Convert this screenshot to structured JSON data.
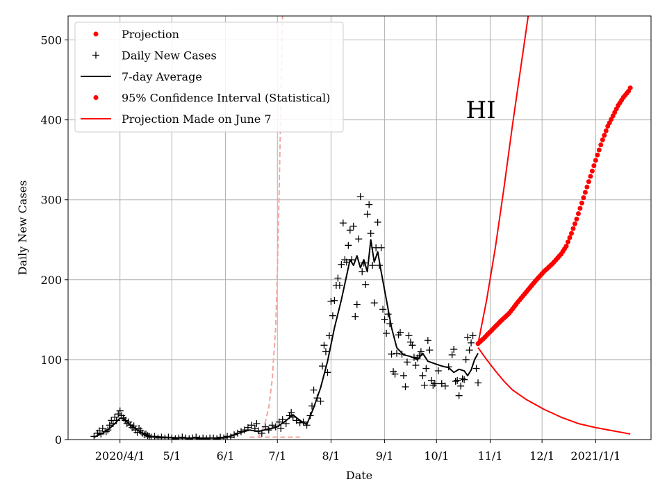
{
  "chart_data": {
    "type": "line",
    "state_label": "HI",
    "xlabel": "Date",
    "ylabel": "Daily New Cases",
    "ylim": [
      0,
      530
    ],
    "xlim_days": [
      -30,
      307
    ],
    "x_origin_date": "2020-04-01",
    "x_ticks": [
      {
        "day": 0,
        "label": "2020/4/1"
      },
      {
        "day": 30,
        "label": "5/1"
      },
      {
        "day": 61,
        "label": "6/1"
      },
      {
        "day": 91,
        "label": "7/1"
      },
      {
        "day": 122,
        "label": "8/1"
      },
      {
        "day": 153,
        "label": "9/1"
      },
      {
        "day": 183,
        "label": "10/1"
      },
      {
        "day": 214,
        "label": "11/1"
      },
      {
        "day": 244,
        "label": "12/1"
      },
      {
        "day": 275,
        "label": "2021/1/1"
      }
    ],
    "y_ticks": [
      0,
      100,
      200,
      300,
      400,
      500
    ],
    "legend": {
      "placement": "top-left",
      "entries": [
        {
          "label": "Projection",
          "marker": "dot",
          "color": "#ff0000"
        },
        {
          "label": "Daily New Cases",
          "marker": "plus",
          "color": "#000000"
        },
        {
          "label": "7-day Average",
          "marker": "line",
          "color": "#000000"
        },
        {
          "label": "95% Confidence Interval (Statistical)",
          "marker": "dot",
          "color": "#ff0000"
        },
        {
          "label": "Projection Made on June 7",
          "marker": "line",
          "color": "#ff0000"
        }
      ]
    },
    "series": [
      {
        "name": "Daily New Cases",
        "style": "plus",
        "color": "#000000",
        "points": [
          [
            -15,
            4
          ],
          [
            -13,
            8
          ],
          [
            -12,
            11
          ],
          [
            -11,
            7
          ],
          [
            -10,
            14
          ],
          [
            -8,
            10
          ],
          [
            -7,
            12
          ],
          [
            -6,
            18
          ],
          [
            -5,
            24
          ],
          [
            -4,
            20
          ],
          [
            -3,
            28
          ],
          [
            -2,
            24
          ],
          [
            -1,
            32
          ],
          [
            0,
            36
          ],
          [
            1,
            30
          ],
          [
            2,
            27
          ],
          [
            3,
            24
          ],
          [
            4,
            20
          ],
          [
            5,
            22
          ],
          [
            6,
            18
          ],
          [
            7,
            15
          ],
          [
            8,
            17
          ],
          [
            9,
            12
          ],
          [
            10,
            9
          ],
          [
            11,
            14
          ],
          [
            12,
            11
          ],
          [
            13,
            8
          ],
          [
            14,
            6
          ],
          [
            15,
            7
          ],
          [
            16,
            5
          ],
          [
            17,
            4
          ],
          [
            18,
            3
          ],
          [
            20,
            4
          ],
          [
            22,
            2
          ],
          [
            24,
            3
          ],
          [
            26,
            2
          ],
          [
            28,
            3
          ],
          [
            30,
            2
          ],
          [
            32,
            1
          ],
          [
            34,
            2
          ],
          [
            36,
            3
          ],
          [
            38,
            2
          ],
          [
            40,
            1
          ],
          [
            42,
            2
          ],
          [
            44,
            3
          ],
          [
            46,
            1
          ],
          [
            48,
            2
          ],
          [
            50,
            1
          ],
          [
            52,
            2
          ],
          [
            54,
            2
          ],
          [
            56,
            1
          ],
          [
            58,
            3
          ],
          [
            60,
            2
          ],
          [
            62,
            4
          ],
          [
            64,
            3
          ],
          [
            66,
            6
          ],
          [
            68,
            8
          ],
          [
            70,
            10
          ],
          [
            72,
            12
          ],
          [
            74,
            15
          ],
          [
            76,
            18
          ],
          [
            78,
            14
          ],
          [
            79,
            20
          ],
          [
            80,
            11
          ],
          [
            82,
            8
          ],
          [
            84,
            16
          ],
          [
            86,
            12
          ],
          [
            88,
            18
          ],
          [
            90,
            16
          ],
          [
            92,
            22
          ],
          [
            93,
            14
          ],
          [
            94,
            25
          ],
          [
            96,
            20
          ],
          [
            98,
            30
          ],
          [
            99,
            34
          ],
          [
            100,
            28
          ],
          [
            102,
            24
          ],
          [
            104,
            21
          ],
          [
            106,
            22
          ],
          [
            108,
            18
          ],
          [
            110,
            30
          ],
          [
            111,
            42
          ],
          [
            112,
            62
          ],
          [
            114,
            52
          ],
          [
            116,
            48
          ],
          [
            117,
            92
          ],
          [
            118,
            118
          ],
          [
            119,
            110
          ],
          [
            120,
            84
          ],
          [
            121,
            130
          ],
          [
            122,
            173
          ],
          [
            123,
            155
          ],
          [
            124,
            174
          ],
          [
            125,
            193
          ],
          [
            126,
            202
          ],
          [
            127,
            193
          ],
          [
            128,
            219
          ],
          [
            129,
            271
          ],
          [
            130,
            225
          ],
          [
            131,
            222
          ],
          [
            132,
            243
          ],
          [
            133,
            262
          ],
          [
            134,
            225
          ],
          [
            135,
            267
          ],
          [
            136,
            154
          ],
          [
            137,
            169
          ],
          [
            138,
            251
          ],
          [
            139,
            304
          ],
          [
            140,
            210
          ],
          [
            141,
            221
          ],
          [
            142,
            194
          ],
          [
            143,
            282
          ],
          [
            144,
            294
          ],
          [
            145,
            258
          ],
          [
            146,
            218
          ],
          [
            147,
            171
          ],
          [
            148,
            240
          ],
          [
            149,
            272
          ],
          [
            150,
            218
          ],
          [
            151,
            240
          ],
          [
            152,
            163
          ],
          [
            153,
            150
          ],
          [
            154,
            133
          ],
          [
            155,
            157
          ],
          [
            156,
            145
          ],
          [
            157,
            107
          ],
          [
            158,
            85
          ],
          [
            159,
            82
          ],
          [
            160,
            108
          ],
          [
            161,
            131
          ],
          [
            162,
            134
          ],
          [
            163,
            107
          ],
          [
            164,
            80
          ],
          [
            165,
            66
          ],
          [
            166,
            97
          ],
          [
            167,
            130
          ],
          [
            168,
            122
          ],
          [
            169,
            118
          ],
          [
            170,
            103
          ],
          [
            171,
            93
          ],
          [
            172,
            102
          ],
          [
            173,
            105
          ],
          [
            174,
            110
          ],
          [
            175,
            80
          ],
          [
            176,
            68
          ],
          [
            177,
            89
          ],
          [
            178,
            124
          ],
          [
            179,
            112
          ],
          [
            180,
            74
          ],
          [
            181,
            68
          ],
          [
            182,
            70
          ],
          [
            184,
            86
          ],
          [
            186,
            70
          ],
          [
            188,
            67
          ],
          [
            190,
            91
          ],
          [
            192,
            106
          ],
          [
            193,
            113
          ],
          [
            194,
            73
          ],
          [
            195,
            74
          ],
          [
            196,
            55
          ],
          [
            197,
            67
          ],
          [
            198,
            76
          ],
          [
            199,
            75
          ],
          [
            200,
            100
          ],
          [
            201,
            128
          ],
          [
            202,
            112
          ],
          [
            203,
            121
          ],
          [
            204,
            130
          ],
          [
            206,
            89
          ],
          [
            207,
            71
          ]
        ]
      },
      {
        "name": "7-day Average",
        "style": "line",
        "color": "#000000",
        "points": [
          [
            -15,
            3
          ],
          [
            -10,
            8
          ],
          [
            -6,
            14
          ],
          [
            -3,
            20
          ],
          [
            0,
            27
          ],
          [
            3,
            25
          ],
          [
            6,
            18
          ],
          [
            10,
            12
          ],
          [
            14,
            7
          ],
          [
            18,
            4
          ],
          [
            25,
            3
          ],
          [
            35,
            2
          ],
          [
            45,
            2
          ],
          [
            55,
            2
          ],
          [
            60,
            2
          ],
          [
            65,
            5
          ],
          [
            70,
            9
          ],
          [
            75,
            12
          ],
          [
            80,
            10
          ],
          [
            85,
            13
          ],
          [
            90,
            15
          ],
          [
            95,
            22
          ],
          [
            100,
            31
          ],
          [
            104,
            24
          ],
          [
            108,
            19
          ],
          [
            112,
            40
          ],
          [
            116,
            65
          ],
          [
            120,
            98
          ],
          [
            124,
            140
          ],
          [
            128,
            175
          ],
          [
            131,
            205
          ],
          [
            133,
            225
          ],
          [
            135,
            218
          ],
          [
            137,
            230
          ],
          [
            139,
            215
          ],
          [
            141,
            225
          ],
          [
            143,
            210
          ],
          [
            145,
            250
          ],
          [
            147,
            222
          ],
          [
            149,
            235
          ],
          [
            151,
            210
          ],
          [
            154,
            175
          ],
          [
            157,
            140
          ],
          [
            160,
            115
          ],
          [
            164,
            106
          ],
          [
            168,
            104
          ],
          [
            172,
            100
          ],
          [
            175,
            108
          ],
          [
            178,
            98
          ],
          [
            182,
            95
          ],
          [
            186,
            92
          ],
          [
            190,
            90
          ],
          [
            193,
            84
          ],
          [
            196,
            88
          ],
          [
            199,
            86
          ],
          [
            201,
            80
          ],
          [
            203,
            87
          ],
          [
            205,
            100
          ],
          [
            207,
            108
          ]
        ]
      },
      {
        "name": "Projection",
        "style": "dots",
        "color": "#ff0000",
        "points": [
          [
            207,
            120
          ],
          [
            210,
            126
          ],
          [
            215,
            137
          ],
          [
            220,
            148
          ],
          [
            225,
            158
          ],
          [
            230,
            172
          ],
          [
            235,
            185
          ],
          [
            240,
            198
          ],
          [
            245,
            210
          ],
          [
            250,
            220
          ],
          [
            255,
            232
          ],
          [
            258,
            242
          ],
          [
            261,
            258
          ],
          [
            264,
            276
          ],
          [
            267,
            296
          ],
          [
            270,
            316
          ],
          [
            273,
            336
          ],
          [
            276,
            356
          ],
          [
            279,
            375
          ],
          [
            282,
            392
          ],
          [
            285,
            405
          ],
          [
            288,
            418
          ],
          [
            291,
            428
          ],
          [
            294,
            436
          ],
          [
            295,
            440
          ]
        ]
      },
      {
        "name": "95% Confidence Interval (Statistical)",
        "style": "line",
        "color": "#ff0000",
        "points": [
          [
            207,
            120
          ],
          [
            212,
            175
          ],
          [
            217,
            240
          ],
          [
            222,
            315
          ],
          [
            227,
            395
          ],
          [
            232,
            470
          ],
          [
            236,
            530
          ]
        ]
      },
      {
        "name": "95% Confidence Interval (Statistical) lower",
        "style": "line",
        "color": "#ff0000",
        "points": [
          [
            207,
            115
          ],
          [
            212,
            100
          ],
          [
            217,
            86
          ],
          [
            222,
            73
          ],
          [
            227,
            62
          ],
          [
            235,
            50
          ],
          [
            245,
            38
          ],
          [
            255,
            28
          ],
          [
            265,
            20
          ],
          [
            275,
            15
          ],
          [
            285,
            11
          ],
          [
            295,
            7
          ]
        ]
      },
      {
        "name": "Projection Made on June 7",
        "style": "dashed",
        "color": "#f4a6a0",
        "points": [
          [
            80,
            3
          ],
          [
            82,
            10
          ],
          [
            84,
            22
          ],
          [
            86,
            40
          ],
          [
            88,
            75
          ],
          [
            90,
            140
          ],
          [
            91,
            210
          ],
          [
            92,
            310
          ],
          [
            93,
            420
          ],
          [
            94,
            530
          ]
        ]
      },
      {
        "name": "Projection Made on June 7 lower",
        "style": "dashed",
        "color": "#f4a6a0",
        "points": [
          [
            75,
            3
          ],
          [
            85,
            3
          ],
          [
            95,
            3
          ],
          [
            104,
            3
          ]
        ]
      }
    ]
  }
}
